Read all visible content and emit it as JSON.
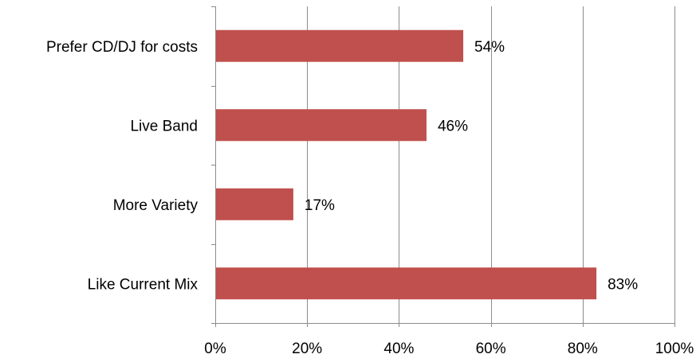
{
  "chart_data": {
    "type": "bar",
    "orientation": "horizontal",
    "categories": [
      "Like Current Mix",
      "More Variety",
      "Live Band ",
      "Prefer CD/DJ for costs"
    ],
    "values": [
      83,
      17,
      46,
      54
    ],
    "data_labels": [
      "83%",
      "17%",
      "46%",
      "54%"
    ],
    "xlim": [
      0,
      100
    ],
    "x_ticks": [
      0,
      20,
      40,
      60,
      80,
      100
    ],
    "x_tick_labels": [
      "0%",
      "20%",
      "40%",
      "60%",
      "80%",
      "100%"
    ],
    "title": "",
    "xlabel": "",
    "ylabel": "",
    "grid": "vertical",
    "legend": "none",
    "bar_color": "#c0504d"
  }
}
